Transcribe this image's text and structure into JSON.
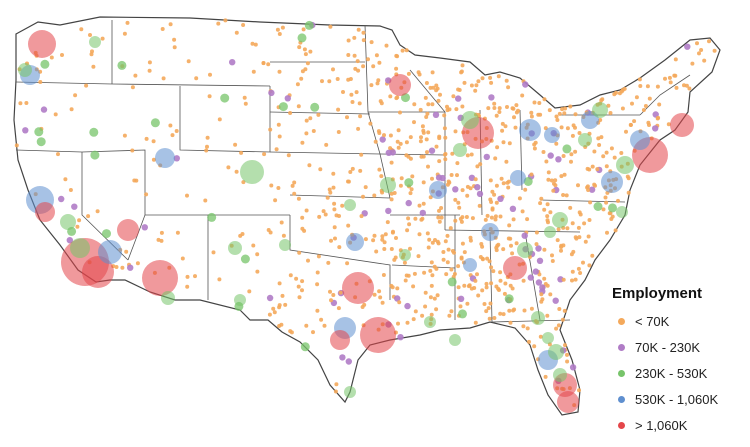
{
  "legend": {
    "title": "Employment",
    "items": [
      {
        "label": "< 70K",
        "color": "#f4a95b"
      },
      {
        "label": "70K - 230K",
        "color": "#b07cc6"
      },
      {
        "label": "230K - 530K",
        "color": "#77c46a"
      },
      {
        "label": "530K - 1,060K",
        "color": "#5f8fcf"
      },
      {
        "label": "> 1,060K",
        "color": "#e4464a"
      }
    ]
  },
  "colors": {
    "background": "#ffffff",
    "state_border": "#555555",
    "small": "#f4a95b",
    "medium": "#b07cc6",
    "large": "#77c46a",
    "xlarge": "#5f8fcf",
    "xxlarge": "#e4464a"
  }
}
